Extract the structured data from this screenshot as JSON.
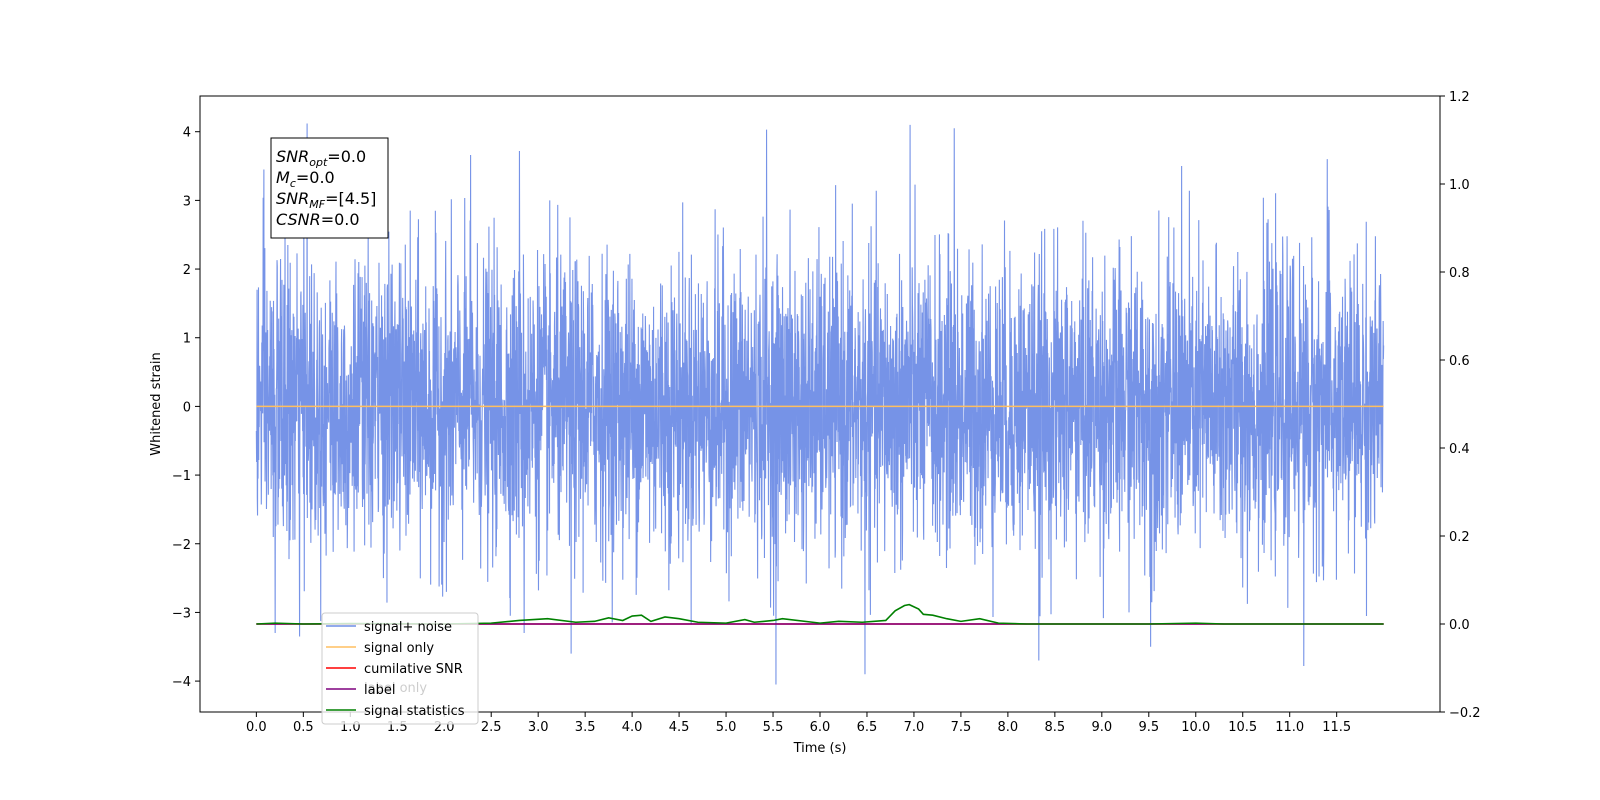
{
  "chart_data": {
    "type": "line",
    "xlabel": "Time (s)",
    "ylabel": "Whitened strain",
    "xlim": [
      -0.6,
      12.6
    ],
    "ylim": [
      -4.45,
      4.52
    ],
    "y2lim": [
      -0.2,
      1.2
    ],
    "x_ticks": [
      "0.0",
      "0.5",
      "1.0",
      "1.5",
      "2.0",
      "2.5",
      "3.0",
      "3.5",
      "4.0",
      "4.5",
      "5.0",
      "5.5",
      "6.0",
      "6.5",
      "7.0",
      "7.5",
      "8.0",
      "8.5",
      "9.0",
      "9.5",
      "10.0",
      "10.5",
      "11.0",
      "11.5"
    ],
    "y_ticks": [
      "4",
      "3",
      "2",
      "1",
      "0",
      "−1",
      "−2",
      "−3",
      "−4"
    ],
    "y_tick_values": [
      4,
      3,
      2,
      1,
      0,
      -1,
      -2,
      -3,
      -4
    ],
    "y2_ticks": [
      "1.2",
      "1.0",
      "0.8",
      "0.6",
      "0.4",
      "0.2",
      "0.0",
      "−0.2"
    ],
    "y2_tick_values": [
      1.2,
      1.0,
      0.8,
      0.6,
      0.4,
      0.2,
      0.0,
      -0.2
    ],
    "grid": false,
    "legend_placement": "lower-left",
    "series": [
      {
        "name": "signal+ noise",
        "axis": "left",
        "color": "#6f8de6",
        "description": "Noisy whitened strain, fluctuating roughly between -3 and +3 with peaks up to about 4.1 and down to about -4.0",
        "x_range": [
          0.0,
          12.0
        ],
        "peaks": [
          [
            0.54,
            4.12
          ],
          [
            6.96,
            4.1
          ],
          [
            7.43,
            4.05
          ],
          [
            6.48,
            3.94
          ],
          [
            2.8,
            3.72
          ],
          [
            5.43,
            4.03
          ],
          [
            11.4,
            3.6
          ],
          [
            0.08,
            3.45
          ],
          [
            2.28,
            3.66
          ],
          [
            9.85,
            3.5
          ]
        ],
        "troughs": [
          [
            5.53,
            -4.05
          ],
          [
            6.48,
            -3.9
          ],
          [
            11.15,
            -3.78
          ],
          [
            8.33,
            -3.7
          ],
          [
            3.35,
            -3.6
          ],
          [
            9.52,
            -3.5
          ],
          [
            0.46,
            -3.35
          ],
          [
            0.2,
            -3.3
          ],
          [
            2.85,
            -3.3
          ]
        ]
      },
      {
        "name": "signal only",
        "axis": "left",
        "color": "#ffbf60",
        "x": [
          0.0,
          12.0
        ],
        "y": [
          0.0,
          0.0
        ]
      },
      {
        "name": "cumilative SNR",
        "axis": "right",
        "color": "#ff0000",
        "x": [
          0.0,
          12.0
        ],
        "y": [
          0.0,
          0.0
        ]
      },
      {
        "name": "label",
        "axis": "right",
        "color": "#7f007f",
        "x": [
          0.0,
          12.0
        ],
        "y": [
          0.0,
          0.0
        ]
      },
      {
        "name": "signal statistics",
        "axis": "right",
        "color": "#008000",
        "x": [
          0.0,
          0.2,
          0.5,
          1.0,
          2.0,
          2.5,
          2.8,
          3.1,
          3.4,
          3.6,
          3.75,
          3.9,
          4.0,
          4.1,
          4.2,
          4.35,
          4.5,
          4.7,
          5.0,
          5.2,
          5.3,
          5.5,
          5.6,
          6.0,
          6.2,
          6.45,
          6.7,
          6.8,
          6.9,
          6.95,
          7.05,
          7.1,
          7.2,
          7.35,
          7.5,
          7.7,
          7.9,
          8.2,
          9.5,
          10.0,
          10.3,
          11.0,
          12.0
        ],
        "y": [
          0.0,
          0.002,
          0.0,
          0.001,
          0.0,
          0.002,
          0.008,
          0.012,
          0.004,
          0.006,
          0.014,
          0.008,
          0.018,
          0.02,
          0.006,
          0.016,
          0.012,
          0.004,
          0.002,
          0.01,
          0.004,
          0.008,
          0.012,
          0.002,
          0.006,
          0.004,
          0.008,
          0.03,
          0.042,
          0.044,
          0.034,
          0.022,
          0.02,
          0.012,
          0.006,
          0.012,
          0.002,
          0.0,
          0.0,
          0.002,
          0.0,
          0.0,
          0.0
        ]
      }
    ],
    "legend": [
      "signal+ noise",
      "signal only",
      "cumilative SNR",
      "label",
      "signal statistics"
    ],
    "annotation": {
      "lines": [
        {
          "sym": "SNR",
          "sub": "opt",
          "rest": "=0.0"
        },
        {
          "sym": "M",
          "sub": "c",
          "rest": "=0.0"
        },
        {
          "sym": "SNR",
          "sub": "MF",
          "rest": "=[4.5]"
        },
        {
          "sym": "CSNR",
          "sub": "",
          "rest": "=0.0"
        }
      ]
    },
    "overlapping_legend_ghost_text": "label only"
  }
}
